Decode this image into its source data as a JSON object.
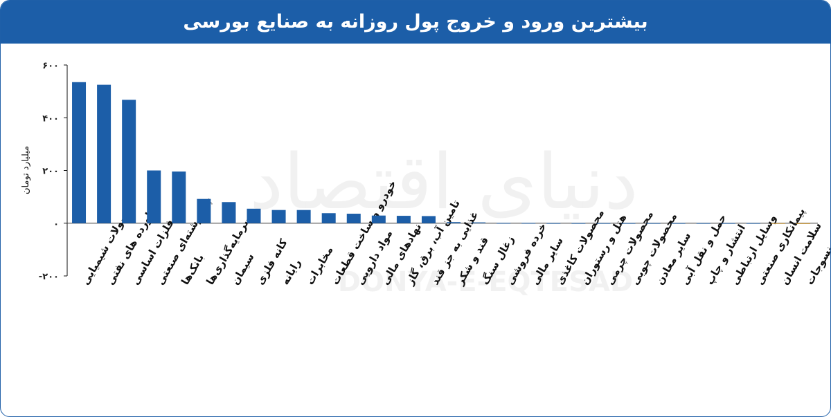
{
  "header": {
    "title": "بیشترین ورود و خروج پول روزانه به صنایع بورسی"
  },
  "watermark": {
    "text_fa": "دنیای اقتصاد",
    "text_en": "DONYA-E-EQTESAD"
  },
  "colors": {
    "header_bg": "#1c5ea8",
    "bar": "#1c5ea8",
    "bar_negative": "#d9a441"
  },
  "chart_data": {
    "type": "bar",
    "title": "بیشترین ورود و خروج پول روزانه به صنایع بورسی",
    "xlabel": "",
    "ylabel": "میلیارد تومان",
    "ylim": [
      -200,
      600
    ],
    "yticks": [
      -200,
      0,
      200,
      400,
      600
    ],
    "ytick_labels": [
      "-۲۰۰",
      "۰",
      "۲۰۰",
      "۴۰۰",
      "۶۰۰"
    ],
    "grid": false,
    "categories": [
      "محصولات شیمیایی",
      "فراورده های نفتی",
      "فلزات اساسی",
      "چند رشته‌ای صنعتی",
      "بانک‌ها",
      "سرمایه‌گذاری‌ها",
      "سیمان",
      "کانه فلزی",
      "رایانه",
      "مخابرات",
      "خودرو و ساخت قطعات",
      "مواد دارویی",
      "نهادهای مالی",
      "تامین آب، برق، گاز",
      "غذایی به جز قند",
      "قند و شکر",
      "زغال سنگ",
      "خرده فروشی",
      "سایر مالی",
      "محصولات کاغذی",
      "هتل و رستوران",
      "محصولات چرمی",
      "محصولات چوبی",
      "سایر معادن",
      "حمل و نقل آبی",
      "انتشار و چاپ",
      "وسایل ارتباطی",
      "پیمانکاری صنعتی",
      "سلامت انسان",
      "منسوجات"
    ],
    "values": [
      535,
      525,
      468,
      200,
      196,
      92,
      80,
      55,
      50,
      50,
      38,
      36,
      29,
      28,
      27,
      4,
      3,
      1,
      1,
      0.5,
      0.5,
      0.5,
      0.5,
      0.5,
      0.5,
      0.5,
      0.5,
      0.5,
      -1,
      -3
    ]
  }
}
